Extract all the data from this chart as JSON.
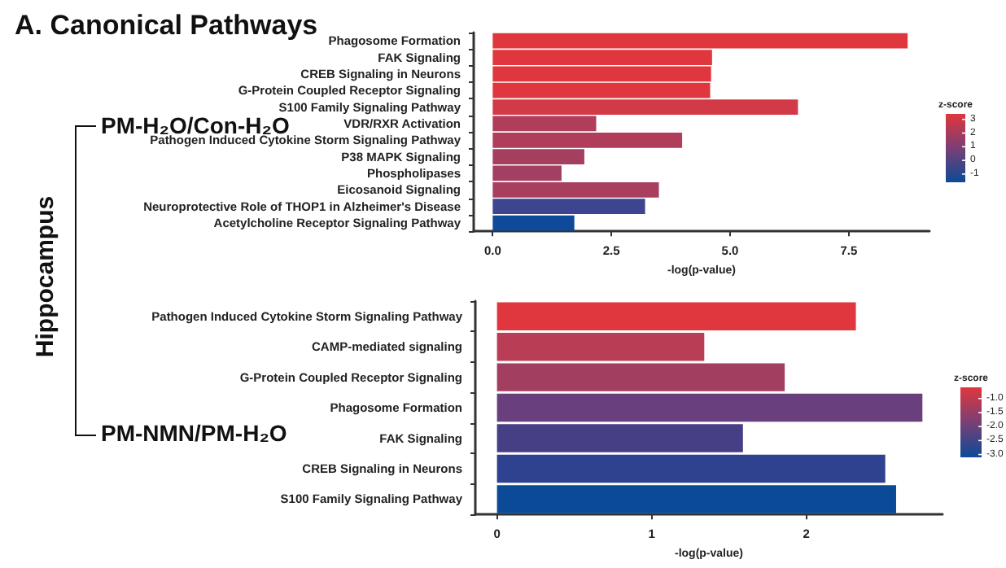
{
  "chart_data": [
    {
      "type": "bar",
      "orientation": "horizontal",
      "title": "A. Canonical Pathways",
      "xlabel": "-log(p-value)",
      "clabel": "z-score",
      "clim": [
        -1.6,
        3.4
      ],
      "cticks": [
        3,
        2,
        1,
        0,
        -1
      ],
      "annotations": [
        "Hippocampus",
        "PM-H₂O/Con-H₂O"
      ],
      "categories": [
        "Phagosome Formation",
        "FAK Signaling",
        "CREB Signaling in Neurons",
        "G-Protein Coupled Receptor Signaling",
        "S100 Family Signaling Pathway",
        "VDR/RXR Activation",
        "Pathogen Induced Cytokine Storm Signaling Pathway",
        "P38 MAPK Signaling",
        "Phospholipases",
        "Eicosanoid Signaling",
        "Neuroprotective Role of THOP1 in Alzheimer's Disease",
        "Acetylcholine Receptor Signaling Pathway"
      ],
      "values": [
        8.74,
        4.62,
        4.6,
        4.58,
        6.43,
        2.18,
        3.99,
        1.93,
        1.45,
        3.5,
        3.21,
        1.72
      ],
      "colors": [
        "#e0363d",
        "#e0363d",
        "#e0363d",
        "#e0363d",
        "#d23a48",
        "#b03e5a",
        "#b03e5a",
        "#a43f60",
        "#a23f62",
        "#a83f5e",
        "#3d4590",
        "#0f4a9a"
      ],
      "xlim": [
        -0.4,
        9.2
      ],
      "xticks": [
        {
          "value": 0,
          "label": "0.0"
        },
        {
          "value": 2.5,
          "label": "2.5"
        },
        {
          "value": 5,
          "label": "5.0"
        },
        {
          "value": 7.5,
          "label": "7.5"
        }
      ],
      "grid": false
    },
    {
      "type": "bar",
      "orientation": "horizontal",
      "xlabel": "-log(p-value)",
      "clabel": "z-score",
      "clim": [
        -3.1,
        -0.6
      ],
      "cticks": [
        {
          "value": -1,
          "label": "-1.0"
        },
        {
          "value": -1.5,
          "label": "-1.5"
        },
        {
          "value": -2,
          "label": "-2.0"
        },
        {
          "value": -2.5,
          "label": "-2.5"
        },
        {
          "value": -3,
          "label": "-3.0"
        }
      ],
      "annotations": [
        "PM-NMN/PM-H₂O"
      ],
      "categories": [
        "Pathogen Induced Cytokine Storm Signaling Pathway",
        "CAMP-mediated signaling",
        "G-Protein Coupled Receptor Signaling",
        "Phagosome Formation",
        "FAK Signaling",
        "CREB Signaling in Neurons",
        "S100 Family Signaling Pathway"
      ],
      "values": [
        2.32,
        1.34,
        1.86,
        2.75,
        1.59,
        2.51,
        2.58
      ],
      "colors": [
        "#e0363d",
        "#b83d55",
        "#a23f60",
        "#6a3f7e",
        "#463f85",
        "#2e4290",
        "#0b4a97"
      ],
      "xlim": [
        -0.14,
        2.88
      ],
      "xticks": [
        0,
        1,
        2
      ],
      "grid": false
    }
  ]
}
